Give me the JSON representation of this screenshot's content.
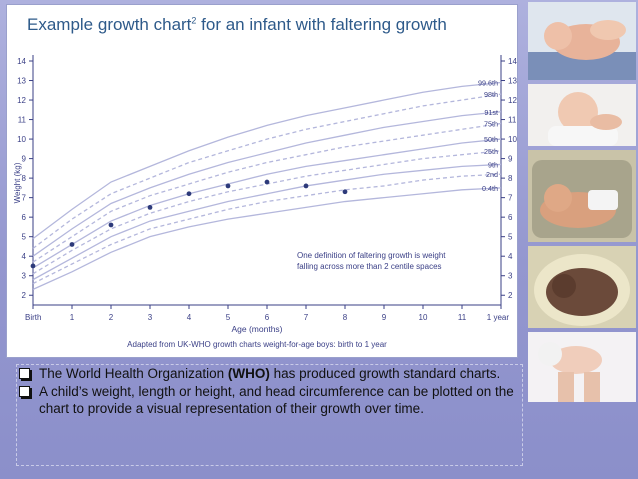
{
  "slide": {
    "title_main": "Example growth chart",
    "title_sup": "2",
    "title_rest": " for an infant with faltering growth",
    "bullets": [
      {
        "pre": "The World Health Organization ",
        "bold": "(WHO)",
        "post": " has produced growth standard charts."
      },
      {
        "pre": "A child’s weight, length or height, and head circumference can be plotted on the chart to provide a visual representation of their growth over time.",
        "bold": "",
        "post": ""
      }
    ],
    "colors": {
      "background": "#9497cf",
      "chart_line": "#b4b7dc",
      "points": "#2d3a7a",
      "text": "#3a3f86"
    },
    "photos": [
      "newborn-infant-photo",
      "sleeping-infant-photo",
      "premature-infant-photo",
      "infant-in-incubator-photo",
      "infant-held-in-hands-photo"
    ]
  },
  "chart_data": {
    "type": "line",
    "title": "Example growth chart2 for an infant with faltering growth",
    "ylabel": "Weight (kg)",
    "xlabel": "Age (months)",
    "source": "Adapted from UK-WHO growth charts weight-for-age boys: birth to 1 year",
    "ylim": [
      1.5,
      14
    ],
    "xlim": [
      0,
      12
    ],
    "y_ticks": [
      2,
      3,
      4,
      5,
      6,
      7,
      8,
      9,
      10,
      11,
      12,
      13,
      14
    ],
    "x_ticks": [
      0,
      1,
      2,
      3,
      4,
      5,
      6,
      7,
      8,
      9,
      10,
      11,
      12
    ],
    "x_tick_labels": [
      "Birth",
      "1",
      "2",
      "3",
      "4",
      "5",
      "6",
      "7",
      "8",
      "9",
      "10",
      "11",
      "1 year"
    ],
    "annotation": [
      "One definition of faltering growth is weight",
      "falling across more than 2 centile spaces"
    ],
    "series": [
      {
        "name": "99.6th",
        "dashed": false,
        "values": [
          4.9,
          6.4,
          7.8,
          8.6,
          9.4,
          10.1,
          10.7,
          11.2,
          11.6,
          12.0,
          12.4,
          12.7,
          12.9
        ]
      },
      {
        "name": "98th",
        "dashed": true,
        "values": [
          4.4,
          5.9,
          7.2,
          8.0,
          8.8,
          9.4,
          10.0,
          10.5,
          10.9,
          11.3,
          11.7,
          12.0,
          12.3
        ]
      },
      {
        "name": "91st",
        "dashed": false,
        "values": [
          4.0,
          5.4,
          6.7,
          7.5,
          8.2,
          8.8,
          9.3,
          9.8,
          10.2,
          10.6,
          10.9,
          11.2,
          11.4
        ]
      },
      {
        "name": "75th",
        "dashed": true,
        "values": [
          3.7,
          5.0,
          6.3,
          7.1,
          7.7,
          8.3,
          8.8,
          9.2,
          9.6,
          9.9,
          10.2,
          10.5,
          10.8
        ]
      },
      {
        "name": "50th",
        "dashed": false,
        "values": [
          3.4,
          4.6,
          5.8,
          6.6,
          7.2,
          7.7,
          8.2,
          8.6,
          8.9,
          9.2,
          9.5,
          9.8,
          10.0
        ]
      },
      {
        "name": "25th",
        "dashed": true,
        "values": [
          3.1,
          4.3,
          5.4,
          6.2,
          6.8,
          7.3,
          7.7,
          8.1,
          8.4,
          8.7,
          9.0,
          9.2,
          9.4
        ]
      },
      {
        "name": "9th",
        "dashed": false,
        "values": [
          2.8,
          3.9,
          5.0,
          5.8,
          6.3,
          6.8,
          7.2,
          7.6,
          7.9,
          8.2,
          8.4,
          8.6,
          8.7
        ]
      },
      {
        "name": "2nd",
        "dashed": true,
        "values": [
          2.6,
          3.6,
          4.6,
          5.4,
          5.9,
          6.4,
          6.8,
          7.1,
          7.4,
          7.6,
          7.9,
          8.1,
          8.2
        ]
      },
      {
        "name": "0.4th",
        "dashed": false,
        "values": [
          2.3,
          3.2,
          4.2,
          5.0,
          5.5,
          5.9,
          6.2,
          6.5,
          6.8,
          7.0,
          7.2,
          7.4,
          7.5
        ]
      }
    ],
    "points": {
      "x": [
        0,
        1,
        2,
        3,
        4,
        5,
        6,
        7,
        8
      ],
      "y": [
        3.5,
        4.6,
        5.6,
        6.5,
        7.2,
        7.6,
        7.8,
        7.6,
        7.3
      ]
    },
    "grid": false
  }
}
